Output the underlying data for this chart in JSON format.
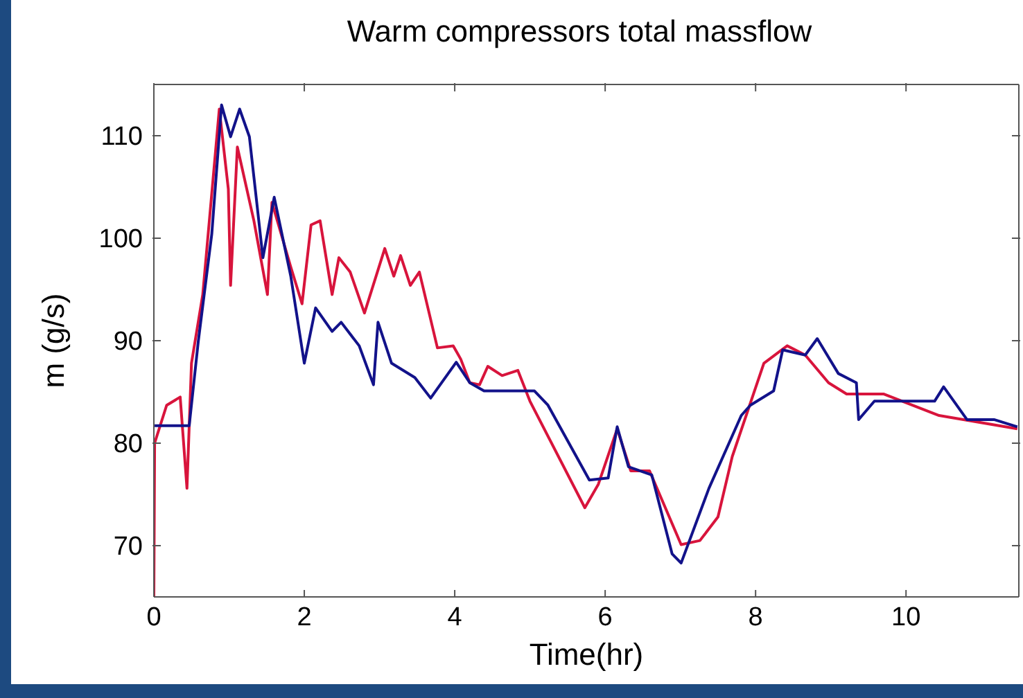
{
  "chart_data": {
    "type": "line",
    "title": "Warm compressors total massflow",
    "xlabel": "Time(hr)",
    "ylabel": "m (g/s)",
    "xlim": [
      0,
      11.5
    ],
    "xticks": [
      0,
      2,
      4,
      6,
      8,
      10
    ],
    "ylim": [
      65,
      115
    ],
    "yticks": [
      70,
      80,
      90,
      100,
      110
    ],
    "legend": false,
    "marker": "none",
    "line_style": "solid",
    "series": [
      {
        "color": "#d8143c",
        "x": [
          0,
          0.01,
          0.17,
          0.35,
          0.44,
          0.5,
          0.65,
          0.87,
          0.99,
          1.02,
          1.11,
          1.33,
          1.51,
          1.57,
          1.82,
          1.97,
          2.09,
          2.21,
          2.37,
          2.46,
          2.61,
          2.8,
          3.07,
          3.19,
          3.28,
          3.41,
          3.53,
          3.77,
          3.98,
          4.08,
          4.2,
          4.33,
          4.44,
          4.63,
          4.84,
          5.0,
          5.73,
          5.91,
          6.16,
          6.34,
          6.59,
          7.01,
          7.26,
          7.5,
          7.69,
          8.11,
          8.42,
          8.66,
          8.97,
          9.21,
          9.7,
          10.44,
          11.48
        ],
        "values": [
          65,
          80,
          83.7,
          84.5,
          75.6,
          87.8,
          94.5,
          112.6,
          104.8,
          95.4,
          108.9,
          101.7,
          94.5,
          103.5,
          97.2,
          93.6,
          101.3,
          101.7,
          94.5,
          98.1,
          96.7,
          92.7,
          99,
          96.3,
          98.3,
          95.4,
          96.7,
          89.3,
          89.5,
          88.2,
          85.9,
          85.7,
          87.5,
          86.6,
          87.1,
          84.1,
          73.7,
          76,
          81.4,
          77.3,
          77.3,
          70.1,
          70.5,
          72.8,
          78.7,
          87.8,
          89.5,
          88.6,
          85.9,
          84.8,
          84.8,
          82.7,
          81.4
        ]
      },
      {
        "color": "#12128a",
        "x": [
          0.01,
          0.47,
          0.59,
          0.77,
          0.9,
          1.02,
          1.14,
          1.27,
          1.45,
          1.6,
          1.82,
          2.0,
          2.15,
          2.37,
          2.49,
          2.73,
          2.92,
          2.98,
          3.16,
          3.47,
          3.68,
          4.02,
          4.2,
          4.39,
          5.06,
          5.24,
          5.79,
          6.04,
          6.16,
          6.31,
          6.62,
          6.89,
          7.01,
          7.38,
          7.81,
          7.93,
          8.24,
          8.36,
          8.66,
          8.82,
          9.1,
          9.34,
          9.37,
          9.58,
          10.07,
          10.38,
          10.5,
          10.81,
          11.17,
          11.48
        ],
        "values": [
          81.7,
          81.7,
          89.9,
          100.4,
          113,
          109.9,
          112.6,
          109.9,
          98.1,
          104,
          96.3,
          87.8,
          93.2,
          90.9,
          91.8,
          89.5,
          85.7,
          91.8,
          87.8,
          86.4,
          84.4,
          87.9,
          85.9,
          85.1,
          85.1,
          83.7,
          76.4,
          76.6,
          81.6,
          77.7,
          76.9,
          69.2,
          68.3,
          75.6,
          82.7,
          83.7,
          85.1,
          89.1,
          88.6,
          90.2,
          86.8,
          85.9,
          82.3,
          84.1,
          84.1,
          84.1,
          85.5,
          82.3,
          82.3,
          81.6
        ]
      }
    ]
  }
}
